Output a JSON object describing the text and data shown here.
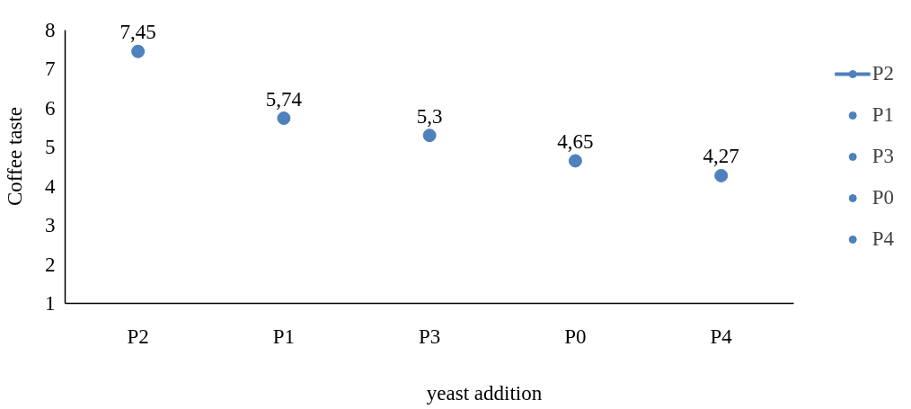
{
  "chart_data": {
    "type": "scatter",
    "xlabel": "yeast addition",
    "ylabel": "Coffee taste",
    "categories": [
      "P2",
      "P1",
      "P3",
      "P0",
      "P4"
    ],
    "series": [
      {
        "name": "P2",
        "type": "line",
        "marker": "circle",
        "color": "#4f81bd",
        "values": [
          7.45,
          null,
          null,
          null,
          null
        ],
        "value_labels": [
          "7,45",
          null,
          null,
          null,
          null
        ]
      },
      {
        "name": "P1",
        "color": "#4f81bd",
        "values": [
          null,
          5.74,
          null,
          null,
          null
        ],
        "value_labels": [
          null,
          "5,74",
          null,
          null,
          null
        ]
      },
      {
        "name": "P3",
        "color": "#4f81bd",
        "values": [
          null,
          null,
          5.3,
          null,
          null
        ],
        "value_labels": [
          null,
          null,
          "5,3",
          null,
          null
        ]
      },
      {
        "name": "P0",
        "color": "#4f81bd",
        "values": [
          null,
          null,
          null,
          4.65,
          null
        ],
        "value_labels": [
          null,
          null,
          null,
          "4,65",
          null
        ]
      },
      {
        "name": "P4",
        "color": "#4f81bd",
        "values": [
          null,
          null,
          null,
          null,
          4.27
        ],
        "value_labels": [
          null,
          null,
          null,
          null,
          "4,27"
        ]
      }
    ],
    "ylim": [
      1,
      8
    ],
    "yticks": [
      1,
      2,
      3,
      4,
      5,
      6,
      7,
      8
    ],
    "grid": false,
    "legend": "right",
    "marker": "circle"
  }
}
